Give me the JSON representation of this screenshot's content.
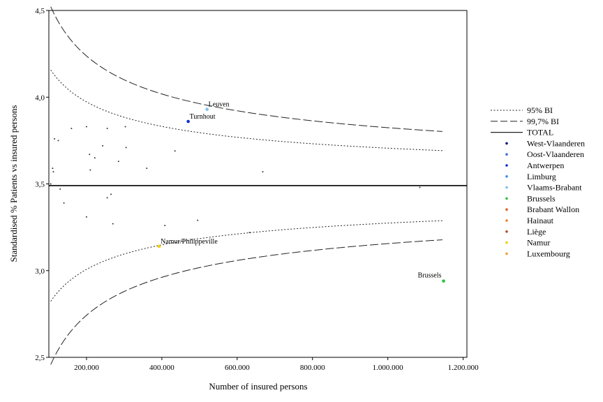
{
  "chart_data": {
    "type": "scatter",
    "title": "",
    "xlabel": "Number of insured persons",
    "ylabel": "Standardised % Patients vs insured persons",
    "xlim": [
      100000,
      1210000
    ],
    "ylim": [
      2.5,
      4.5
    ],
    "xticks": [
      200000,
      400000,
      600000,
      800000,
      1000000,
      1200000
    ],
    "xtick_labels": [
      "200.000",
      "400.000",
      "600.000",
      "800.000",
      "1.000.000",
      "1.200.000"
    ],
    "yticks": [
      2.5,
      3.0,
      3.5,
      4.0,
      4.5
    ],
    "ytick_labels": [
      "2,5",
      "3,0",
      "3,5",
      "4,0",
      "4,5"
    ],
    "total": 3.49,
    "curve_x_range": [
      105000,
      1145000
    ],
    "ci95": {
      "k": 6.83,
      "label": "95% BI"
    },
    "ci997": {
      "k": 10.57,
      "label": "99,7% BI"
    },
    "total_label": "TOTAL",
    "legend_position": "right",
    "grid": false,
    "points": [
      {
        "x": 105000,
        "y": 3.5,
        "color": "#333333"
      },
      {
        "x": 110000,
        "y": 3.59,
        "color": "#333333"
      },
      {
        "x": 112000,
        "y": 3.57,
        "color": "#333333"
      },
      {
        "x": 115000,
        "y": 3.76,
        "color": "#333333"
      },
      {
        "x": 125000,
        "y": 3.75,
        "color": "#333333"
      },
      {
        "x": 130000,
        "y": 3.47,
        "color": "#333333"
      },
      {
        "x": 140000,
        "y": 3.39,
        "color": "#333333"
      },
      {
        "x": 160000,
        "y": 3.82,
        "color": "#333333"
      },
      {
        "x": 200000,
        "y": 3.83,
        "color": "#333333"
      },
      {
        "x": 200000,
        "y": 3.31,
        "color": "#333333"
      },
      {
        "x": 208000,
        "y": 3.67,
        "color": "#333333"
      },
      {
        "x": 210000,
        "y": 3.58,
        "color": "#333333"
      },
      {
        "x": 222000,
        "y": 3.65,
        "color": "#333333"
      },
      {
        "x": 243000,
        "y": 3.72,
        "color": "#333333"
      },
      {
        "x": 255000,
        "y": 3.82,
        "color": "#333333"
      },
      {
        "x": 255000,
        "y": 3.42,
        "color": "#333333"
      },
      {
        "x": 265000,
        "y": 3.44,
        "color": "#333333"
      },
      {
        "x": 270000,
        "y": 3.27,
        "color": "#333333"
      },
      {
        "x": 285000,
        "y": 3.63,
        "color": "#333333"
      },
      {
        "x": 303000,
        "y": 3.83,
        "color": "#333333"
      },
      {
        "x": 305000,
        "y": 3.71,
        "color": "#333333"
      },
      {
        "x": 360000,
        "y": 3.59,
        "color": "#333333"
      },
      {
        "x": 408000,
        "y": 3.26,
        "color": "#333333"
      },
      {
        "x": 435000,
        "y": 3.69,
        "color": "#333333"
      },
      {
        "x": 495000,
        "y": 3.29,
        "color": "#333333"
      },
      {
        "x": 633000,
        "y": 3.22,
        "color": "#333333"
      },
      {
        "x": 668000,
        "y": 3.57,
        "color": "#333333"
      },
      {
        "x": 1085000,
        "y": 3.48,
        "color": "#333333"
      },
      {
        "x": 520000,
        "y": 3.93,
        "color": "#80c0f0",
        "label": "Leuven"
      },
      {
        "x": 470000,
        "y": 3.86,
        "color": "#1030d0",
        "label": "Turnhout"
      },
      {
        "x": 393000,
        "y": 3.14,
        "color": "#f0d000",
        "label": "Namur/Philippeville"
      },
      {
        "x": 1148000,
        "y": 2.94,
        "color": "#30c040",
        "label": "Brussels"
      }
    ],
    "legend": [
      {
        "kind": "line",
        "style": "dot",
        "label": "95% BI"
      },
      {
        "kind": "line",
        "style": "dash",
        "label": "99,7% BI"
      },
      {
        "kind": "line",
        "style": "solid",
        "label": "TOTAL"
      },
      {
        "kind": "dot",
        "color": "#0a1a7a",
        "label": "West-Vlaanderen"
      },
      {
        "kind": "dot",
        "color": "#4a6ce0",
        "label": "Oost-Vlaanderen"
      },
      {
        "kind": "dot",
        "color": "#1030d0",
        "label": "Antwerpen"
      },
      {
        "kind": "dot",
        "color": "#3a8ee8",
        "label": "Limburg"
      },
      {
        "kind": "dot",
        "color": "#80c0f0",
        "label": "Vlaams-Brabant"
      },
      {
        "kind": "dot",
        "color": "#30c040",
        "label": "Brussels"
      },
      {
        "kind": "dot",
        "color": "#e06020",
        "label": "Brabant Wallon"
      },
      {
        "kind": "dot",
        "color": "#f08020",
        "label": "Hainaut"
      },
      {
        "kind": "dot",
        "color": "#b05030",
        "label": "Liège"
      },
      {
        "kind": "dot",
        "color": "#f0d000",
        "label": "Namur"
      },
      {
        "kind": "dot",
        "color": "#f0a030",
        "label": "Luxembourg"
      }
    ]
  }
}
